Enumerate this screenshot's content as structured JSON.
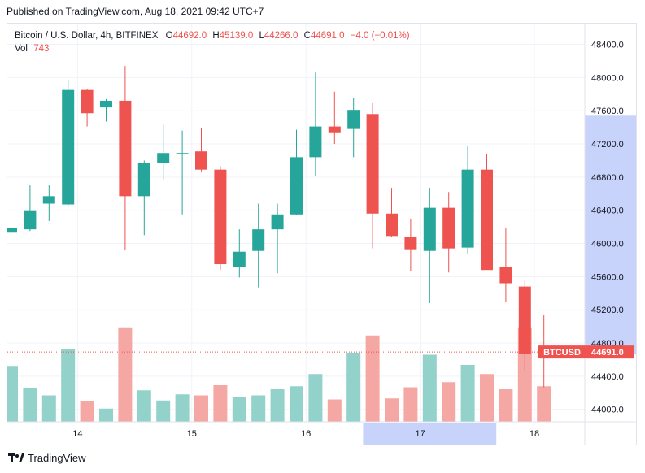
{
  "header": {
    "published": "Published on TradingView.com, Aug 18, 2021 09:42 UTC+7"
  },
  "legend": {
    "title": "Bitcoin / U.S. Dollar, 4h, BITFINEX",
    "o_label": "O",
    "o_value": "44692.0",
    "h_label": "H",
    "h_value": "45139.0",
    "l_label": "L",
    "l_value": "44266.0",
    "c_label": "C",
    "c_value": "44691.0",
    "change": "−4.0 (−0.01%)",
    "vol_label": "Vol",
    "vol_value": "743"
  },
  "price_tag": {
    "symbol": "BTCUSD",
    "value": "44691.0"
  },
  "brand": {
    "name": "TradingView"
  },
  "colors": {
    "up": "#26a69a",
    "down": "#ef5350",
    "up_vol": "#93d1cb",
    "down_vol": "#f5a7a4",
    "highlight": "#c8d3fb",
    "grid": "#f0f3fa",
    "axis_text": "#131722"
  },
  "chart_data": {
    "type": "candlestick",
    "title": "Bitcoin / U.S. Dollar, 4h, BITFINEX",
    "ylim": [
      43850,
      48650
    ],
    "y_ticks": [
      "44000.0",
      "44400.0",
      "44800.0",
      "45200.0",
      "45600.0",
      "46000.0",
      "46400.0",
      "46800.0",
      "47200.0",
      "47600.0",
      "48000.0",
      "48400.0"
    ],
    "x_ticks": [
      {
        "label": "14",
        "index": 3.5
      },
      {
        "label": "15",
        "index": 9.5
      },
      {
        "label": "16",
        "index": 15.5
      },
      {
        "label": "17",
        "index": 21.5
      },
      {
        "label": "18",
        "index": 27.5
      }
    ],
    "x_highlight_index": [
      18.5,
      25.5
    ],
    "y_highlight": [
      44660,
      47540
    ],
    "last_price": 44691.0,
    "candles": [
      {
        "o": 46130,
        "h": 46190,
        "l": 46080,
        "c": 46190,
        "v": 0.55
      },
      {
        "o": 46170,
        "h": 46700,
        "l": 46150,
        "c": 46390,
        "v": 0.33
      },
      {
        "o": 46480,
        "h": 46700,
        "l": 46270,
        "c": 46570,
        "v": 0.26
      },
      {
        "o": 46470,
        "h": 47970,
        "l": 46440,
        "c": 47850,
        "v": 0.72
      },
      {
        "o": 47850,
        "h": 47860,
        "l": 47410,
        "c": 47570,
        "v": 0.2
      },
      {
        "o": 47640,
        "h": 47740,
        "l": 47470,
        "c": 47720,
        "v": 0.13
      },
      {
        "o": 47720,
        "h": 48140,
        "l": 45920,
        "c": 46570,
        "v": 0.93
      },
      {
        "o": 46570,
        "h": 47000,
        "l": 46100,
        "c": 46970,
        "v": 0.31
      },
      {
        "o": 46970,
        "h": 47430,
        "l": 46770,
        "c": 47090,
        "v": 0.21
      },
      {
        "o": 47080,
        "h": 47360,
        "l": 46350,
        "c": 47090,
        "v": 0.27
      },
      {
        "o": 47110,
        "h": 47390,
        "l": 46860,
        "c": 46890,
        "v": 0.26
      },
      {
        "o": 46890,
        "h": 46930,
        "l": 45680,
        "c": 45750,
        "v": 0.36
      },
      {
        "o": 45720,
        "h": 46170,
        "l": 45590,
        "c": 45900,
        "v": 0.24
      },
      {
        "o": 45910,
        "h": 46480,
        "l": 45470,
        "c": 46170,
        "v": 0.26
      },
      {
        "o": 46170,
        "h": 46480,
        "l": 45640,
        "c": 46350,
        "v": 0.32
      },
      {
        "o": 46350,
        "h": 47370,
        "l": 46340,
        "c": 47040,
        "v": 0.35
      },
      {
        "o": 47040,
        "h": 48060,
        "l": 46810,
        "c": 47410,
        "v": 0.47
      },
      {
        "o": 47410,
        "h": 47830,
        "l": 47200,
        "c": 47330,
        "v": 0.22
      },
      {
        "o": 47380,
        "h": 47750,
        "l": 47040,
        "c": 47610,
        "v": 0.68
      },
      {
        "o": 47560,
        "h": 47690,
        "l": 45940,
        "c": 46360,
        "v": 0.85
      },
      {
        "o": 46360,
        "h": 46670,
        "l": 46080,
        "c": 46090,
        "v": 0.23
      },
      {
        "o": 46080,
        "h": 46300,
        "l": 45670,
        "c": 45930,
        "v": 0.34
      },
      {
        "o": 45910,
        "h": 46670,
        "l": 45280,
        "c": 46430,
        "v": 0.66
      },
      {
        "o": 46430,
        "h": 46620,
        "l": 45650,
        "c": 45940,
        "v": 0.39
      },
      {
        "o": 45950,
        "h": 47170,
        "l": 45880,
        "c": 46890,
        "v": 0.56
      },
      {
        "o": 46890,
        "h": 47080,
        "l": 45690,
        "c": 45680,
        "v": 0.47
      },
      {
        "o": 45720,
        "h": 46190,
        "l": 45300,
        "c": 45520,
        "v": 0.32
      },
      {
        "o": 45480,
        "h": 45550,
        "l": 44460,
        "c": 44670,
        "v": 0.93
      },
      {
        "o": 44692,
        "h": 45139,
        "l": 44266,
        "c": 44691,
        "v": 0.35
      }
    ]
  }
}
